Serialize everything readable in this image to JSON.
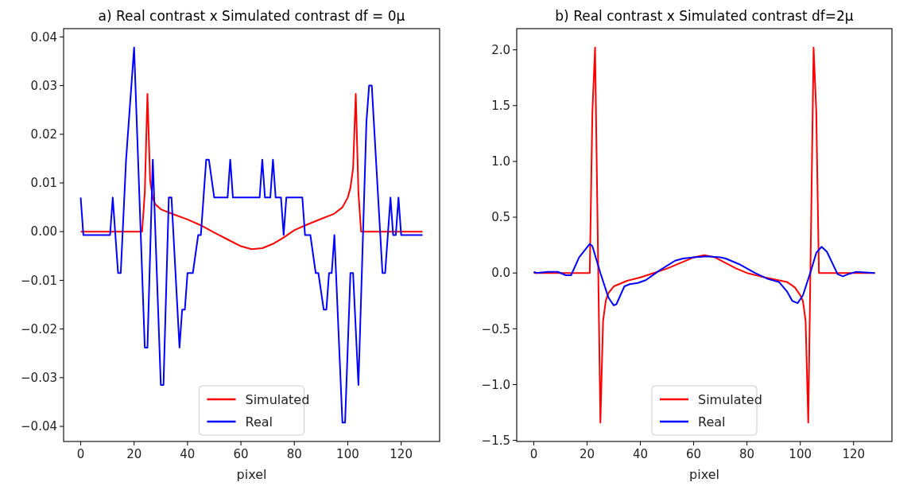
{
  "chart_data": [
    {
      "type": "line",
      "title": "a) Real contrast x Simulated contrast df = 0μ",
      "xlabel": "pixel",
      "legend": "bottom",
      "xlim": [
        -6.4,
        134.4
      ],
      "ylim": [
        -0.0431,
        0.0417
      ],
      "xticks": [
        0,
        20,
        40,
        60,
        80,
        100,
        120
      ],
      "yticks": [
        {
          "value": -0.04,
          "label": "−0.04"
        },
        {
          "value": -0.03,
          "label": "−0.03"
        },
        {
          "value": -0.02,
          "label": "−0.02"
        },
        {
          "value": -0.01,
          "label": "−0.01"
        },
        {
          "value": 0,
          "label": "0.00"
        },
        {
          "value": 0.01,
          "label": "0.01"
        },
        {
          "value": 0.02,
          "label": "0.02"
        },
        {
          "value": 0.03,
          "label": "0.03"
        },
        {
          "value": 0.04,
          "label": "0.04"
        }
      ],
      "series": [
        {
          "name": "Simulated",
          "color": "#ff0000",
          "x": [
            0,
            23,
            24,
            25,
            26,
            27,
            28,
            30,
            35,
            40,
            45,
            50,
            55,
            60,
            64,
            68,
            72,
            76,
            80,
            85,
            90,
            95,
            98,
            100,
            101,
            102,
            103,
            104,
            105,
            128
          ],
          "values": [
            0,
            0,
            0.008,
            0.0283,
            0.0105,
            0.0068,
            0.0056,
            0.0046,
            0.0035,
            0.0025,
            0.0013,
            -0.0002,
            -0.0016,
            -0.003,
            -0.0036,
            -0.0034,
            -0.0025,
            -0.0012,
            0.0003,
            0.0015,
            0.0026,
            0.0037,
            0.005,
            0.007,
            0.009,
            0.013,
            0.0283,
            0.008,
            0,
            0
          ]
        },
        {
          "name": "Real",
          "color": "#0000ff",
          "x": [
            0,
            1,
            11,
            12,
            14,
            15,
            17,
            20,
            24,
            25,
            27,
            30,
            31,
            33,
            34,
            37,
            38,
            39,
            40,
            42,
            44,
            45,
            47,
            48,
            50,
            55,
            56,
            57,
            67,
            68,
            69,
            71,
            72,
            73,
            75,
            76,
            77,
            83,
            84,
            86,
            88,
            89,
            91,
            92,
            93,
            94,
            95,
            98,
            99,
            101,
            102,
            104,
            107,
            108,
            109,
            113,
            114,
            116,
            117,
            118,
            119,
            120,
            128
          ],
          "values": [
            0.007,
            -0.0007,
            -0.0007,
            0.007,
            -0.0085,
            -0.0085,
            0.0148,
            0.0378,
            -0.0238,
            -0.0238,
            0.0148,
            -0.0315,
            -0.0315,
            0.007,
            0.007,
            -0.0238,
            -0.016,
            -0.016,
            -0.0085,
            -0.0085,
            -0.0007,
            -0.0007,
            0.0148,
            0.0148,
            0.007,
            0.007,
            0.0148,
            0.007,
            0.007,
            0.0148,
            0.007,
            0.007,
            0.0148,
            0.007,
            0.007,
            -0.0007,
            0.007,
            0.007,
            -0.0007,
            -0.0007,
            -0.0085,
            -0.0085,
            -0.016,
            -0.016,
            -0.0085,
            -0.0085,
            -0.0007,
            -0.0392,
            -0.0392,
            -0.0085,
            -0.0085,
            -0.0315,
            0.0226,
            0.03,
            0.03,
            -0.0085,
            -0.0085,
            0.007,
            -0.0007,
            -0.0007,
            0.007,
            -0.0007,
            -0.0007
          ]
        }
      ]
    },
    {
      "type": "line",
      "title": "b) Real contrast x Simulated contrast df=2μ",
      "xlabel": "pixel",
      "legend": "bottom",
      "xlim": [
        -6.4,
        134.4
      ],
      "ylim": [
        -1.51,
        2.19
      ],
      "xticks": [
        0,
        20,
        40,
        60,
        80,
        100,
        120
      ],
      "yticks": [
        {
          "value": -1.5,
          "label": "−1.5"
        },
        {
          "value": -1,
          "label": "−1.0"
        },
        {
          "value": -0.5,
          "label": "−0.5"
        },
        {
          "value": 0,
          "label": "0.0"
        },
        {
          "value": 0.5,
          "label": "0.5"
        },
        {
          "value": 1,
          "label": "1.0"
        },
        {
          "value": 1.5,
          "label": "1.5"
        },
        {
          "value": 2,
          "label": "2.0"
        }
      ],
      "series": [
        {
          "name": "Simulated",
          "color": "#ff0000",
          "x": [
            0,
            21,
            22,
            23,
            24,
            25,
            26,
            27,
            28,
            30,
            35,
            40,
            45,
            50,
            55,
            60,
            64,
            68,
            72,
            76,
            80,
            85,
            90,
            95,
            98,
            100,
            101,
            102,
            103,
            104,
            105,
            106,
            107,
            128
          ],
          "values": [
            0,
            0,
            1.45,
            2.02,
            0.34,
            -1.34,
            -0.43,
            -0.25,
            -0.18,
            -0.12,
            -0.07,
            -0.04,
            0,
            0.04,
            0.09,
            0.14,
            0.16,
            0.14,
            0.09,
            0.04,
            0,
            -0.03,
            -0.055,
            -0.08,
            -0.13,
            -0.2,
            -0.25,
            -0.43,
            -1.34,
            0.34,
            2.02,
            1.45,
            0,
            0
          ]
        },
        {
          "name": "Real",
          "color": "#0000ff",
          "x": [
            0,
            1,
            5,
            9,
            12,
            14,
            17,
            21,
            22,
            25,
            28,
            30,
            31,
            34,
            36,
            39,
            42,
            47,
            53,
            56,
            60,
            65,
            70,
            72,
            77,
            83,
            88,
            92,
            95,
            97,
            99,
            101,
            104,
            106,
            108,
            110,
            114,
            116,
            118,
            121,
            128
          ],
          "values": [
            0.01,
            0,
            0.01,
            0.01,
            -0.02,
            -0.02,
            0.14,
            0.26,
            0.24,
            0,
            -0.22,
            -0.29,
            -0.28,
            -0.12,
            -0.1,
            -0.09,
            -0.065,
            0.02,
            0.11,
            0.13,
            0.14,
            0.15,
            0.14,
            0.13,
            0.08,
            0,
            -0.055,
            -0.08,
            -0.165,
            -0.25,
            -0.27,
            -0.2,
            0.02,
            0.18,
            0.235,
            0.19,
            -0.01,
            -0.03,
            -0.01,
            0.01,
            0
          ]
        }
      ]
    }
  ]
}
